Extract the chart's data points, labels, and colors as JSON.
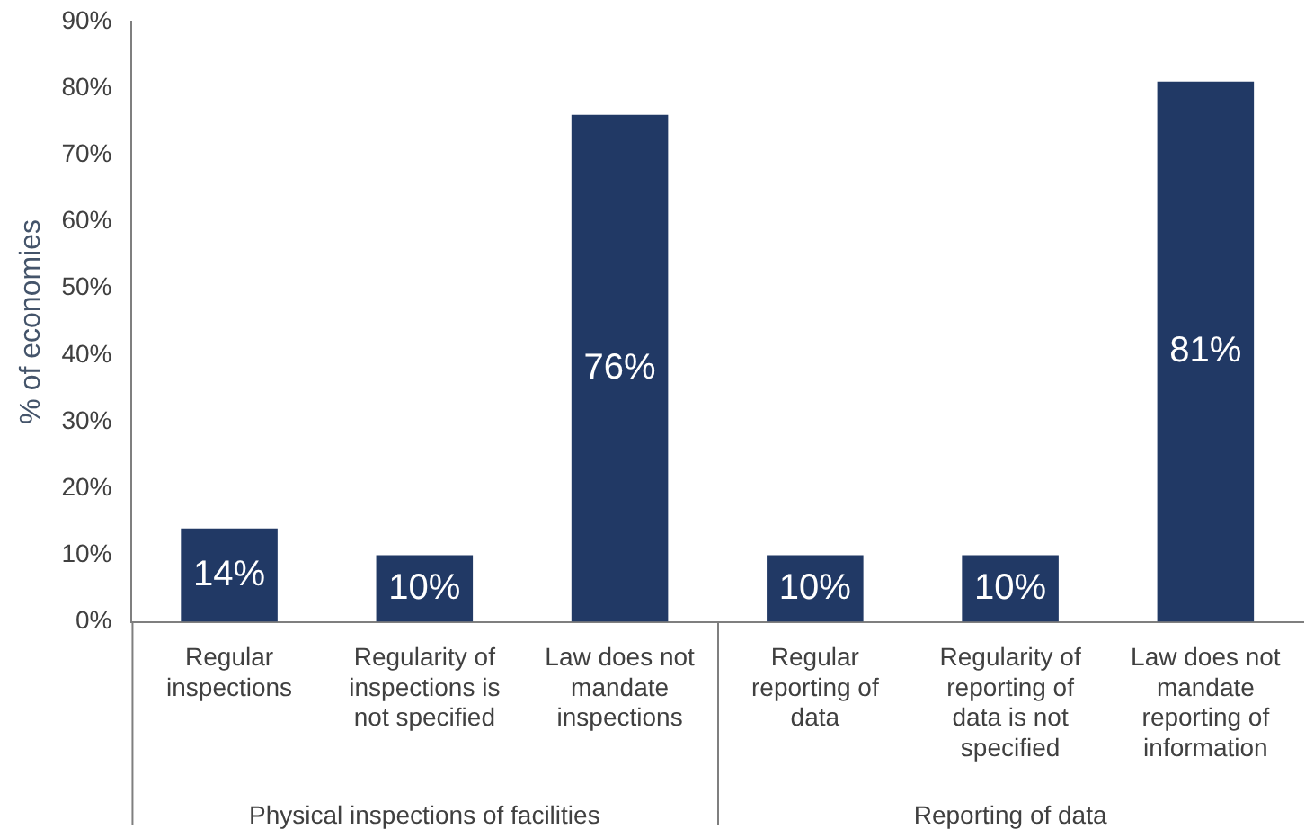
{
  "chart_data": {
    "type": "bar",
    "ylabel": "% of economies",
    "categories": [
      "Regular inspections",
      "Regularity of inspections is not specified",
      "Law does not mandate inspections",
      "Regular reporting of data",
      "Regularity of reporting of data is not specified",
      "Law does not mandate reporting of information"
    ],
    "values": [
      14,
      10,
      76,
      10,
      10,
      81
    ],
    "color": "#213965",
    "ylim": [
      0,
      90
    ],
    "yticks": [
      {
        "value": 0,
        "label": "0%"
      },
      {
        "value": 10,
        "label": "10%"
      },
      {
        "value": 20,
        "label": "20%"
      },
      {
        "value": 30,
        "label": "30%"
      },
      {
        "value": 40,
        "label": "40%"
      },
      {
        "value": 50,
        "label": "50%"
      },
      {
        "value": 60,
        "label": "60%"
      },
      {
        "value": 70,
        "label": "70%"
      },
      {
        "value": 80,
        "label": "80%"
      },
      {
        "value": 90,
        "label": "90%"
      }
    ],
    "value_labels": [
      "14%",
      "10%",
      "76%",
      "10%",
      "10%",
      "81%"
    ],
    "annotations": [
      "Physical inspections of facilities",
      "Reporting of data"
    ],
    "grid": false,
    "legend": false
  }
}
